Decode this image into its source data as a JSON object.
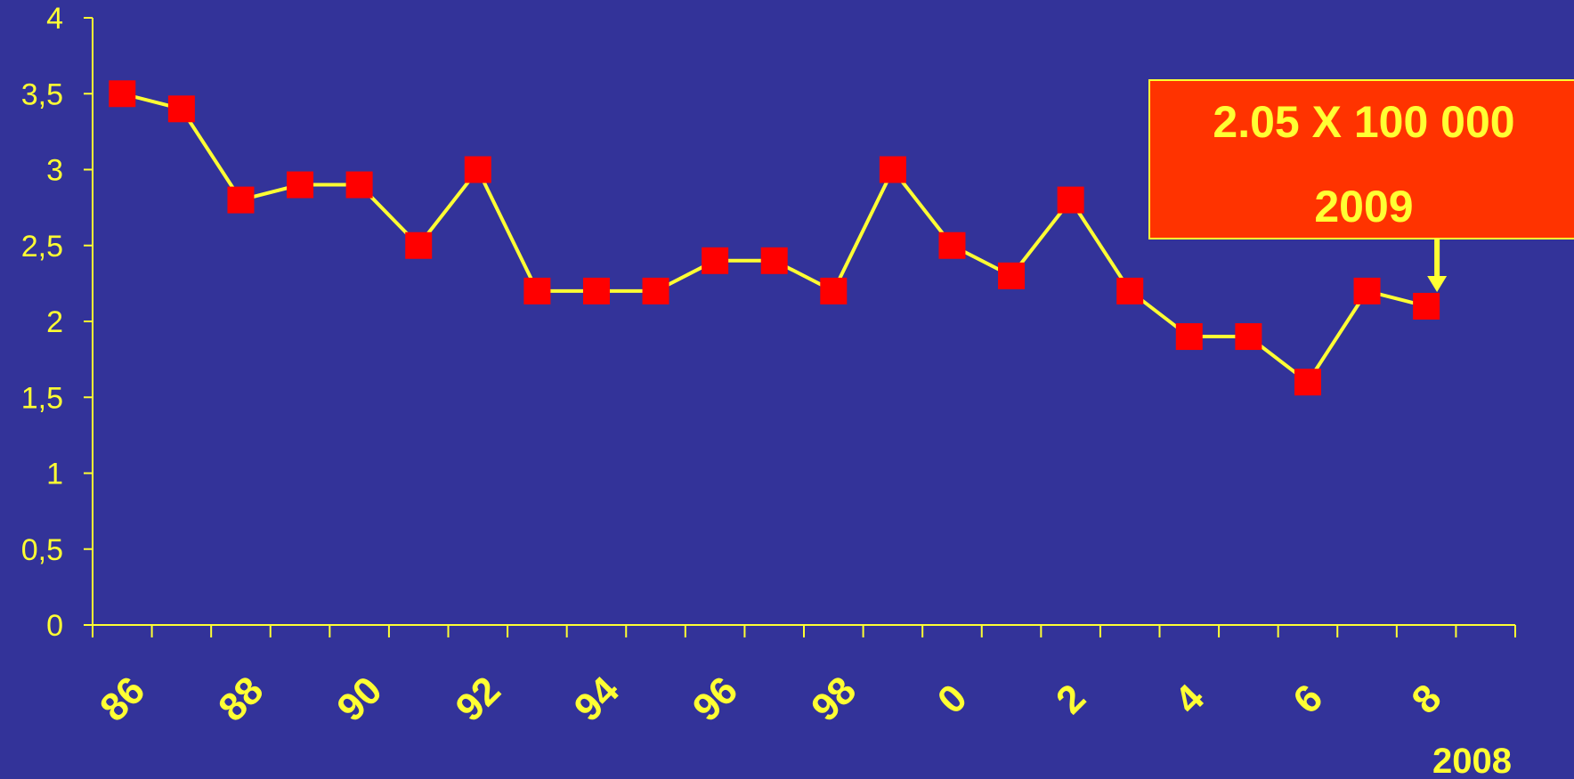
{
  "chart_data": {
    "type": "line",
    "title": "",
    "xlabel": "",
    "ylabel": "",
    "ylim": [
      0,
      4
    ],
    "y_ticks": [
      "0",
      "0,5",
      "1",
      "1,5",
      "2",
      "2,5",
      "3",
      "3,5",
      "4"
    ],
    "x_tick_labels": [
      "86",
      "88",
      "90",
      "92",
      "94",
      "96",
      "98",
      "0",
      "2",
      "4",
      "6",
      "8"
    ],
    "x_corner_label": "2008",
    "grid": false,
    "legend": "none",
    "series": [
      {
        "x": [
          1986,
          1987,
          1988,
          1989,
          1990,
          1991,
          1992,
          1993,
          1994,
          1995,
          1996,
          1997,
          1998,
          1999,
          2000,
          2001,
          2002,
          2003,
          2004,
          2005,
          2006,
          2007,
          2008
        ],
        "values": [
          3.5,
          3.4,
          2.8,
          2.9,
          2.9,
          2.5,
          3.0,
          2.2,
          2.2,
          2.2,
          2.4,
          2.4,
          2.2,
          3.0,
          2.5,
          2.3,
          2.8,
          2.2,
          1.9,
          1.9,
          1.6,
          2.2,
          2.1
        ],
        "line_color": "#ffff33",
        "marker_color": "#ff0000",
        "marker": "square"
      }
    ],
    "annotations": [
      {
        "line1": "2.05 X 100 000",
        "line2": "2009",
        "box_color": "#ff3300",
        "text_color": "#ffff33",
        "points_to": 2008
      }
    ]
  },
  "colors": {
    "background": "#333399",
    "axis": "#ffff33"
  }
}
